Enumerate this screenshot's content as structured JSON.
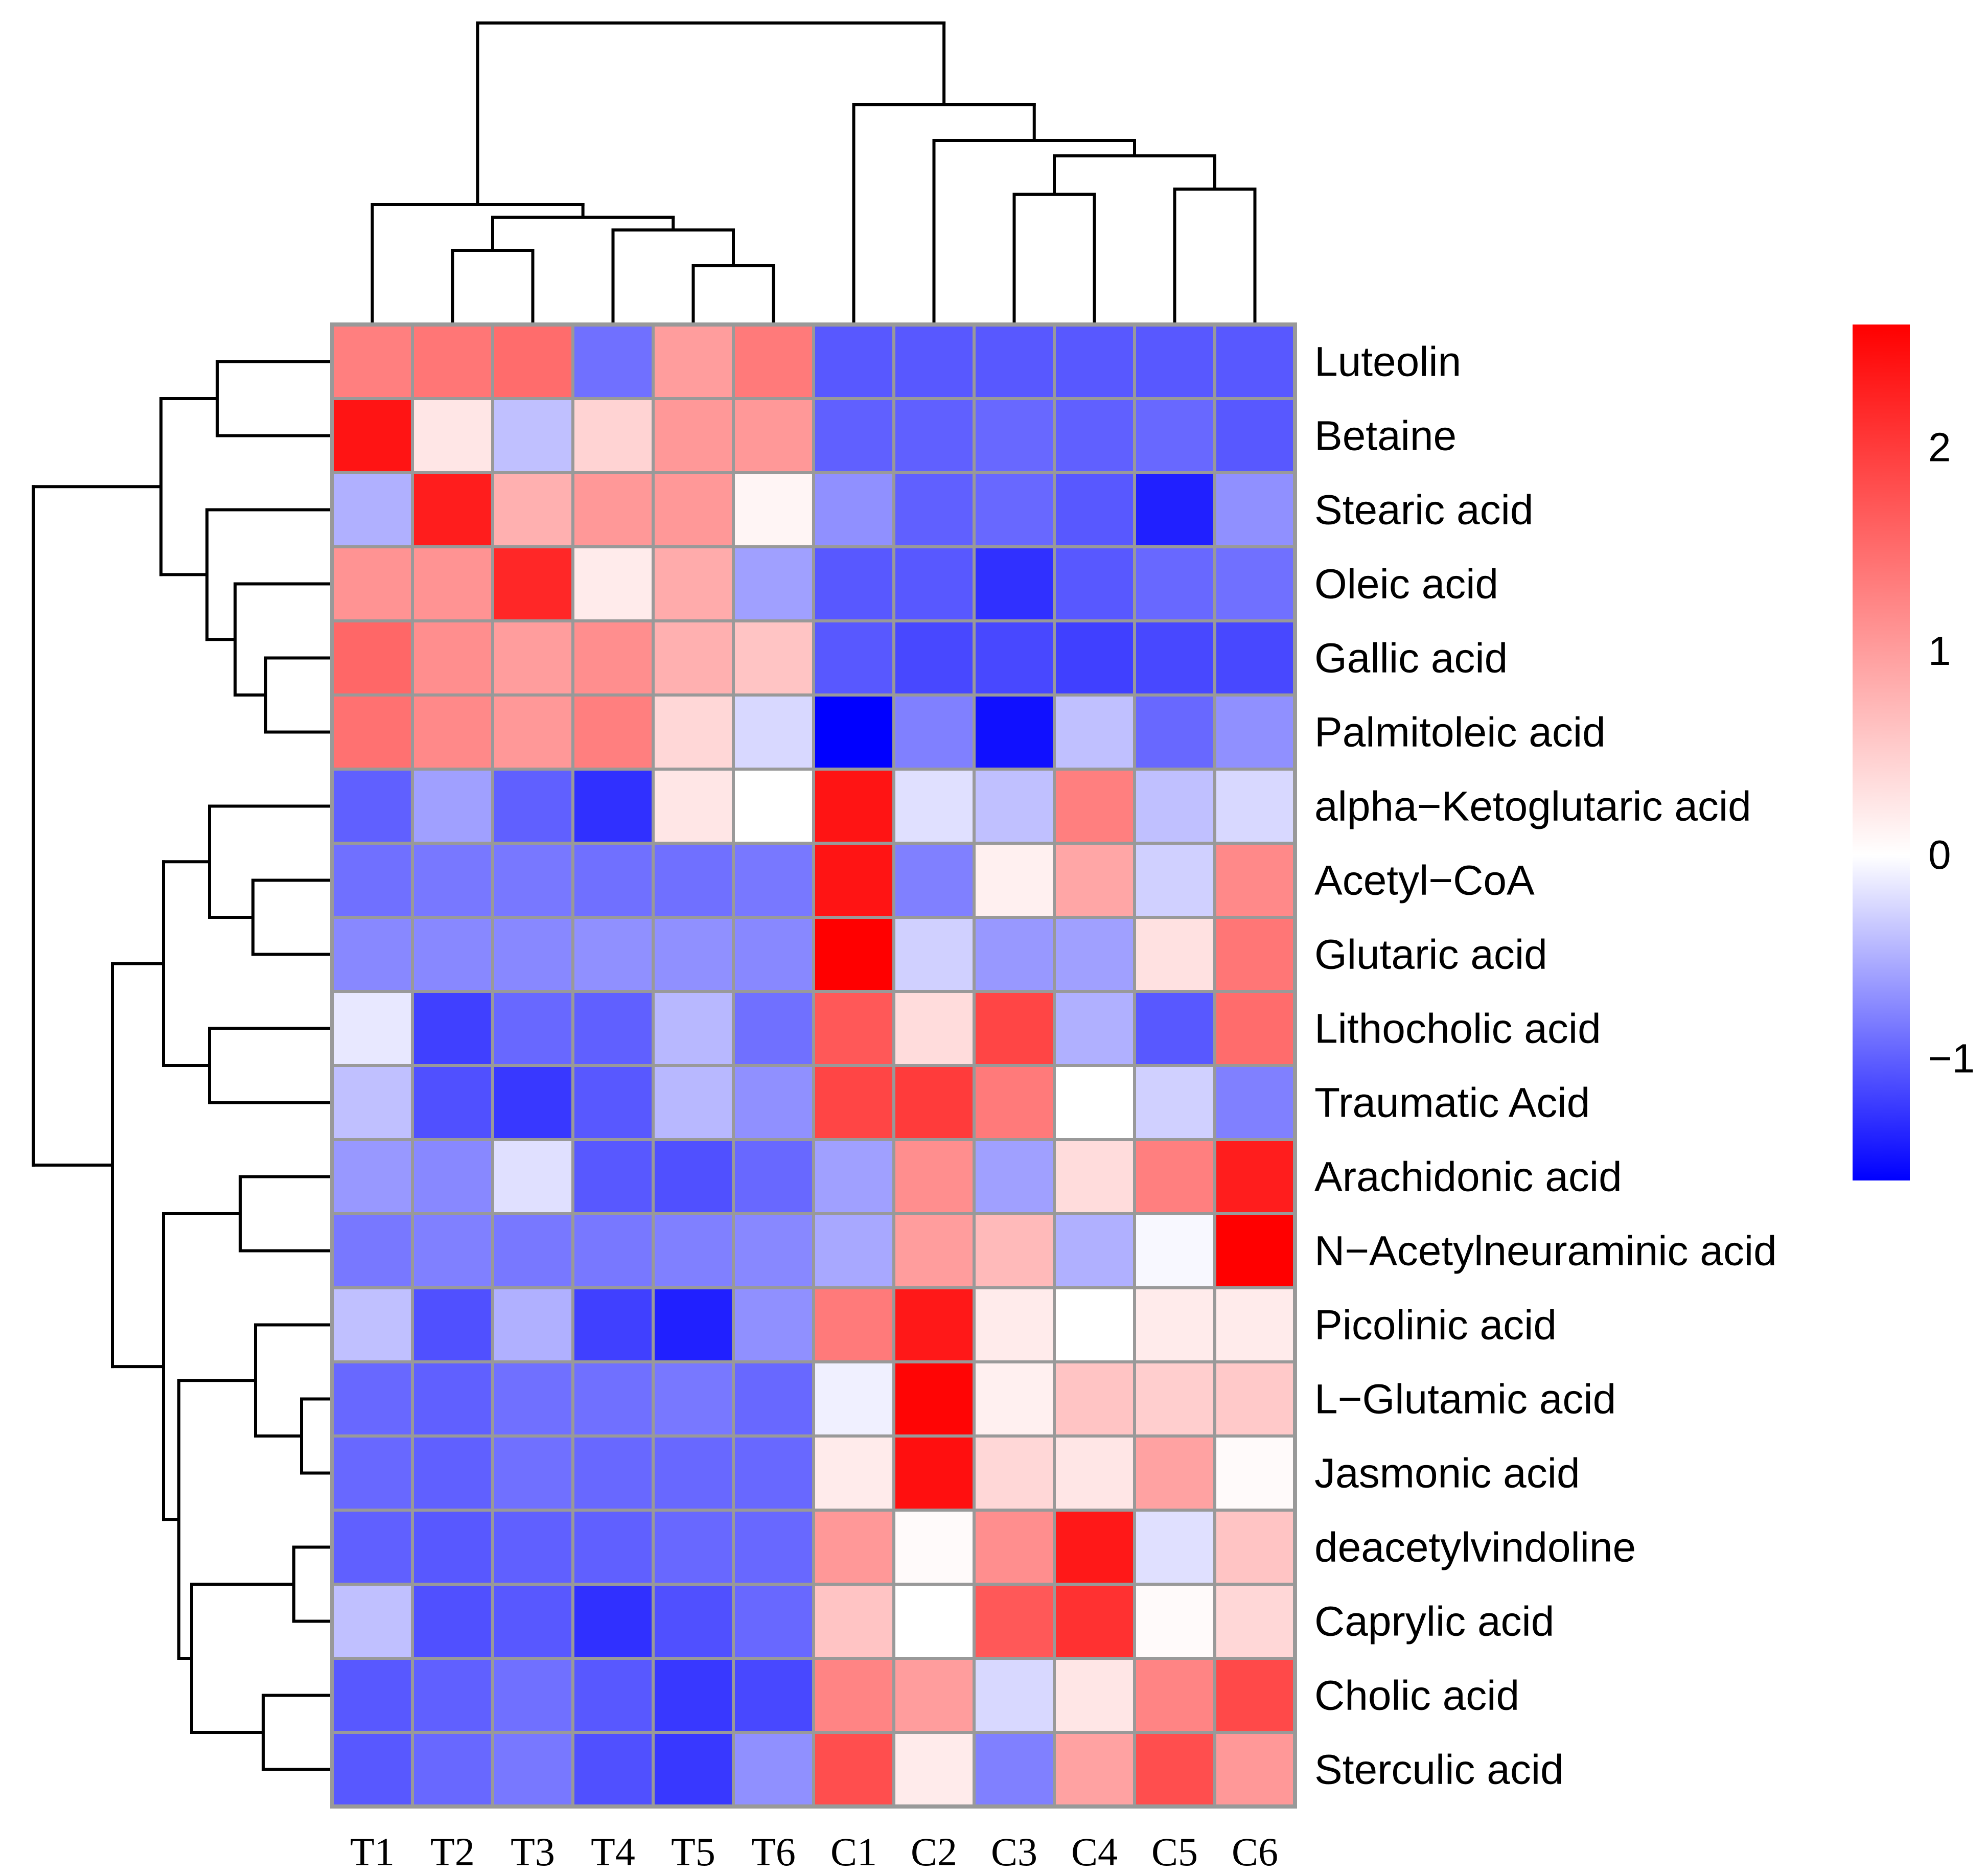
{
  "chart_data": {
    "type": "heatmap",
    "title": "",
    "columns": [
      "T1",
      "T2",
      "T3",
      "T4",
      "T5",
      "T6",
      "C1",
      "C2",
      "C3",
      "C4",
      "C5",
      "C6"
    ],
    "rows": [
      "Luteolin",
      "Betaine",
      "Stearic acid",
      "Oleic acid",
      "Gallic acid",
      "Palmitoleic acid",
      "alpha−Ketoglutaric acid",
      "Acetyl−CoA",
      "Glutaric acid",
      "Lithocholic acid",
      "Traumatic Acid",
      "Arachidonic acid",
      "N−Acetylneuraminic acid",
      "Picolinic acid",
      "L−Glutamic acid",
      "Jasmonic acid",
      "deacetylvindoline",
      "Caprylic acid",
      "Cholic acid",
      "Sterculic acid"
    ],
    "values": [
      [
        1.3,
        1.4,
        1.5,
        -0.9,
        1.0,
        1.35,
        -1.05,
        -1.05,
        -1.05,
        -1.05,
        -1.05,
        -1.05
      ],
      [
        2.4,
        0.25,
        -0.4,
        0.45,
        1.05,
        1.05,
        -1.0,
        -1.0,
        -0.95,
        -1.0,
        -0.95,
        -1.05
      ],
      [
        -0.5,
        2.3,
        0.8,
        1.05,
        1.05,
        0.1,
        -0.7,
        -1.0,
        -0.95,
        -1.05,
        -1.4,
        -0.7
      ],
      [
        1.1,
        1.1,
        2.2,
        0.2,
        0.85,
        -0.6,
        -1.05,
        -1.05,
        -1.3,
        -1.05,
        -0.95,
        -0.9
      ],
      [
        1.55,
        1.15,
        1.0,
        1.15,
        0.8,
        0.6,
        -1.05,
        -1.15,
        -1.15,
        -1.2,
        -1.15,
        -1.15
      ],
      [
        1.45,
        1.2,
        1.05,
        1.3,
        0.4,
        -0.25,
        -1.6,
        -0.8,
        -1.5,
        -0.4,
        -0.95,
        -0.7
      ],
      [
        -1.0,
        -0.6,
        -1.0,
        -1.3,
        0.25,
        0.0,
        2.4,
        -0.2,
        -0.4,
        1.3,
        -0.4,
        -0.25
      ],
      [
        -0.9,
        -0.85,
        -0.85,
        -0.9,
        -0.9,
        -0.85,
        2.4,
        -0.8,
        0.15,
        0.9,
        -0.3,
        1.2
      ],
      [
        -0.75,
        -0.75,
        -0.75,
        -0.7,
        -0.7,
        -0.75,
        2.6,
        -0.3,
        -0.65,
        -0.6,
        0.3,
        1.4
      ],
      [
        -0.15,
        -1.2,
        -0.95,
        -1.0,
        -0.45,
        -0.9,
        1.7,
        0.35,
        1.9,
        -0.5,
        -1.05,
        1.5
      ],
      [
        -0.4,
        -1.1,
        -1.25,
        -1.05,
        -0.45,
        -0.7,
        1.9,
        2.0,
        1.35,
        0.0,
        -0.3,
        -0.8
      ],
      [
        -0.65,
        -0.75,
        -0.2,
        -1.05,
        -1.1,
        -0.95,
        -0.6,
        1.15,
        -0.6,
        0.35,
        1.3,
        2.3
      ],
      [
        -0.85,
        -0.8,
        -0.85,
        -0.85,
        -0.8,
        -0.75,
        -0.55,
        1.0,
        0.7,
        -0.5,
        -0.05,
        2.6
      ],
      [
        -0.4,
        -1.1,
        -0.5,
        -1.2,
        -1.4,
        -0.7,
        1.35,
        2.35,
        0.2,
        0.0,
        0.2,
        0.2
      ],
      [
        -0.95,
        -1.0,
        -0.9,
        -0.9,
        -0.85,
        -0.95,
        -0.1,
        2.55,
        0.15,
        0.6,
        0.5,
        0.55
      ],
      [
        -0.95,
        -1.0,
        -0.9,
        -0.95,
        -0.95,
        -0.95,
        0.2,
        2.45,
        0.4,
        0.25,
        0.95,
        0.05
      ],
      [
        -1.0,
        -1.05,
        -1.0,
        -1.0,
        -0.95,
        -0.95,
        1.05,
        0.05,
        1.15,
        2.35,
        -0.2,
        0.6
      ],
      [
        -0.4,
        -1.1,
        -1.05,
        -1.3,
        -1.1,
        -0.95,
        0.6,
        0.0,
        1.7,
        2.1,
        0.05,
        0.4
      ],
      [
        -1.05,
        -1.0,
        -0.9,
        -1.05,
        -1.25,
        -1.15,
        1.25,
        1.0,
        -0.25,
        0.25,
        1.25,
        1.85
      ],
      [
        -1.05,
        -0.95,
        -0.85,
        -1.1,
        -1.25,
        -0.7,
        1.8,
        0.2,
        -0.8,
        0.95,
        1.8,
        1.05
      ]
    ],
    "color_scale": {
      "min": -1.6,
      "max": 2.6,
      "colors": [
        "#0000FF",
        "#FFFFFF",
        "#FF0000"
      ],
      "ticks": [
        2,
        1,
        0,
        -1
      ],
      "tick_labels": [
        "2",
        "1",
        "0",
        "−1"
      ]
    },
    "row_dendrogram": true,
    "column_dendrogram": true,
    "legend_position": "right"
  }
}
